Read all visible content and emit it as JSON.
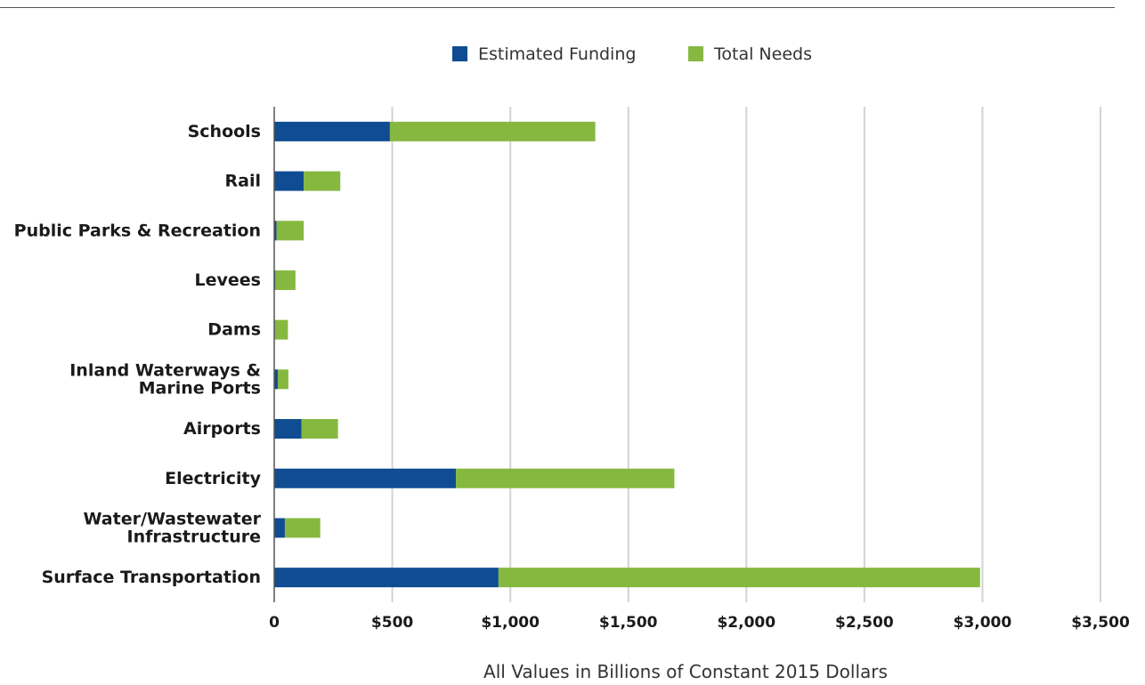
{
  "chart_data": {
    "type": "bar",
    "orientation": "horizontal",
    "stacked": true,
    "categories": [
      "Schools",
      "Rail",
      "Public Parks & Recreation",
      "Levees",
      "Dams",
      "Inland Waterways & Marine Ports",
      "Airports",
      "Electricity",
      "Water/Wastewater Infrastructure",
      "Surface Transportation"
    ],
    "category_lines": [
      [
        "Schools"
      ],
      [
        "Rail"
      ],
      [
        "Public Parks & Recreation"
      ],
      [
        "Levees"
      ],
      [
        "Dams"
      ],
      [
        "Inland Waterways &",
        "Marine Ports"
      ],
      [
        "Airports"
      ],
      [
        "Electricity"
      ],
      [
        "Water/Wastewater",
        "Infrastructure"
      ],
      [
        "Surface Transportation"
      ]
    ],
    "series": [
      {
        "name": "Estimated Funding",
        "color": "#0f4c92",
        "values": [
          490,
          125,
          10,
          5,
          3,
          15,
          115,
          770,
          45,
          950
        ]
      },
      {
        "name": "Total Needs",
        "color": "#86b840",
        "values": [
          870,
          155,
          115,
          85,
          55,
          45,
          155,
          925,
          150,
          2040
        ]
      }
    ],
    "xlim": [
      0,
      3500
    ],
    "xticks": [
      0,
      500,
      1000,
      1500,
      2000,
      2500,
      3000,
      3500
    ],
    "xtick_labels": [
      "0",
      "$500",
      "$1,000",
      "$1,500",
      "$2,000",
      "$2,500",
      "$3,000",
      "$3,500"
    ],
    "xlabel": "All Values in Billions of Constant 2015 Dollars",
    "ylabel": "",
    "title": "",
    "grid": "vertical",
    "legend_position": "top-center",
    "colors": {
      "gridline": "#d3d3d3",
      "axis": "#555555"
    }
  }
}
